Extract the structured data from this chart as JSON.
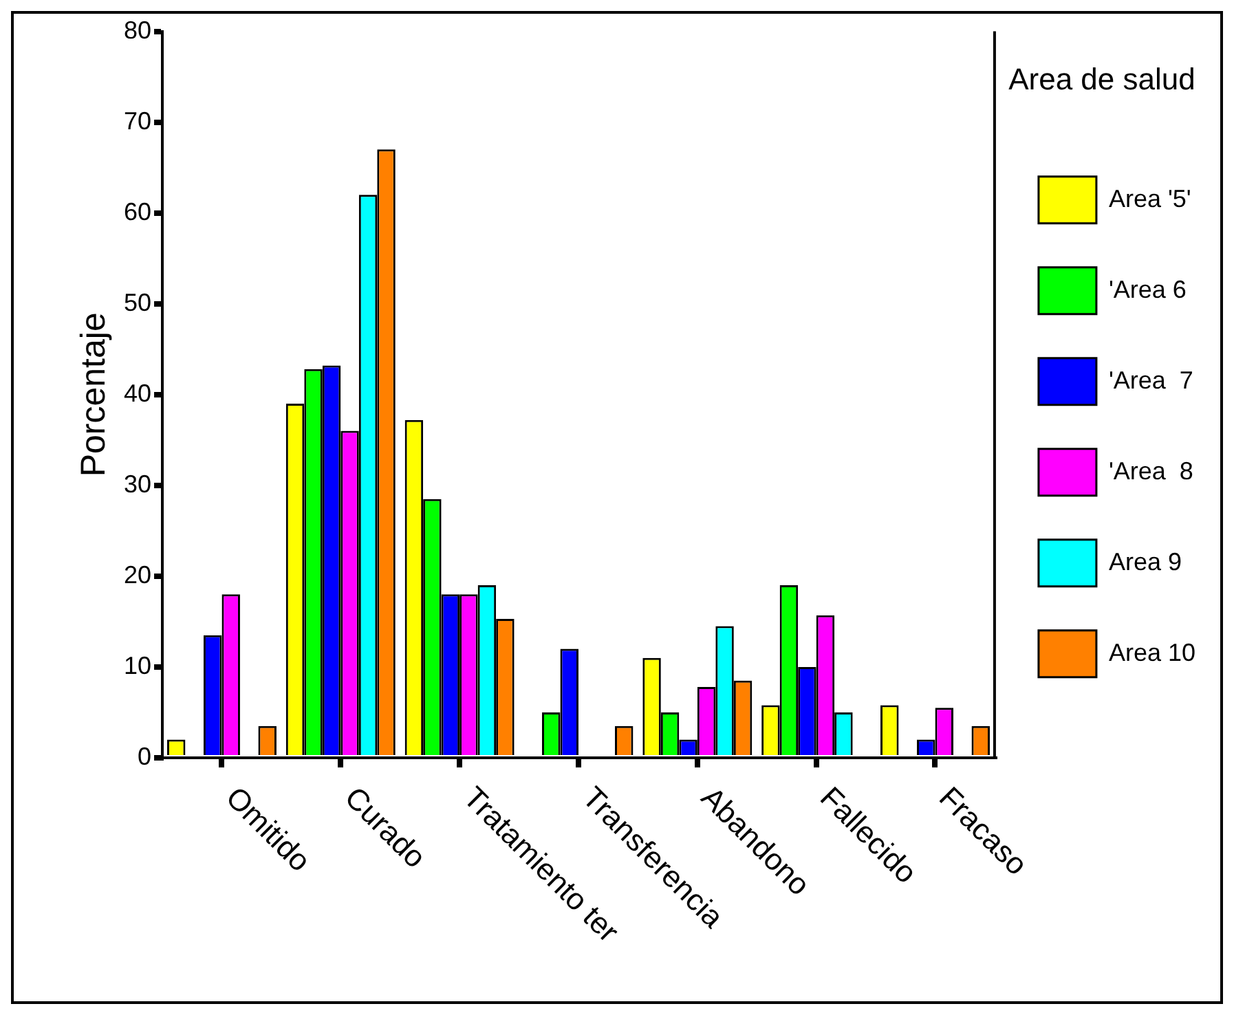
{
  "chart_data": {
    "type": "bar",
    "ylabel": "Porcentaje",
    "legend_title": "Area de salud",
    "legend": "right",
    "grid": false,
    "categories": [
      "Omitido",
      "Curado",
      "Tratamiento ter",
      "Transferencia",
      "Abandono",
      "Fallecido",
      "Fracaso"
    ],
    "ylim": [
      0,
      80
    ],
    "yticks": [
      0,
      10,
      20,
      30,
      40,
      50,
      60,
      70,
      80
    ],
    "series": [
      {
        "name": "Area '5'",
        "color": "#ffff00",
        "values": [
          2,
          39,
          37.2,
          null,
          11,
          5.8,
          5.8
        ]
      },
      {
        "name": "'Area 6",
        "color": "#00ff00",
        "values": [
          null,
          42.8,
          28.5,
          5,
          5,
          19,
          null
        ]
      },
      {
        "name": "'Area  7",
        "color": "#0000ff",
        "values": [
          13.5,
          43.2,
          18,
          12,
          2,
          10,
          2
        ]
      },
      {
        "name": "'Area  8",
        "color": "#ff00ff",
        "values": [
          18,
          36,
          18,
          null,
          7.8,
          15.7,
          5.5
        ]
      },
      {
        "name": "Area 9",
        "color": "#00ffff",
        "values": [
          null,
          62,
          19,
          null,
          14.5,
          5,
          null
        ]
      },
      {
        "name": "Area 10",
        "color": "#ff8000",
        "values": [
          3.5,
          67,
          15.3,
          3.5,
          8.5,
          null,
          3.5
        ]
      }
    ]
  }
}
